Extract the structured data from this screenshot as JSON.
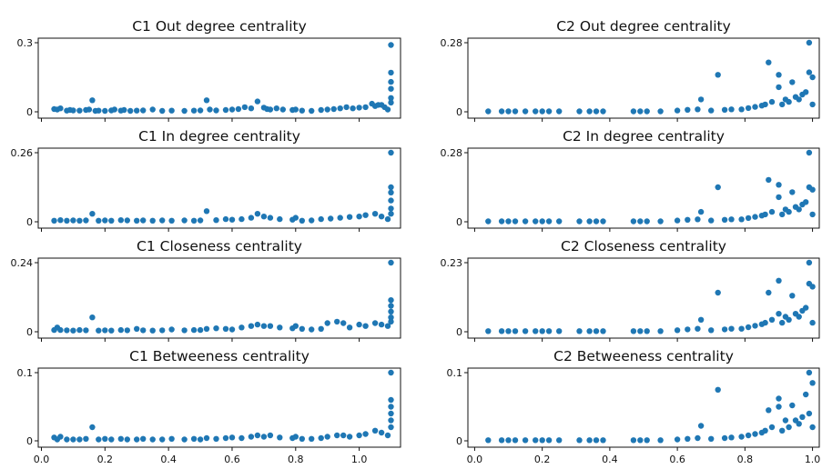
{
  "colors": {
    "marker": "#1f77b4",
    "axis": "#111111",
    "background": "#ffffff"
  },
  "chart_data": [
    {
      "type": "scatter",
      "title": "C1 Out degree centrality",
      "xlim": [
        -0.01,
        1.13
      ],
      "ylim": [
        0,
        0.3
      ],
      "xticks": [
        0.0,
        0.2,
        0.4,
        0.6,
        0.8,
        1.0
      ],
      "xtick_labels": [],
      "yticks": [
        0,
        0.3
      ],
      "ytick_labels": [
        "0",
        "0.3"
      ],
      "x": [
        0.04,
        0.05,
        0.06,
        0.08,
        0.09,
        0.1,
        0.12,
        0.14,
        0.15,
        0.16,
        0.17,
        0.18,
        0.2,
        0.22,
        0.23,
        0.25,
        0.26,
        0.28,
        0.3,
        0.32,
        0.35,
        0.38,
        0.41,
        0.45,
        0.48,
        0.5,
        0.52,
        0.53,
        0.55,
        0.58,
        0.6,
        0.62,
        0.64,
        0.66,
        0.68,
        0.7,
        0.71,
        0.72,
        0.74,
        0.76,
        0.79,
        0.8,
        0.82,
        0.85,
        0.88,
        0.9,
        0.92,
        0.94,
        0.96,
        0.98,
        1.0,
        1.02,
        1.04,
        1.05,
        1.06,
        1.07,
        1.08,
        1.09,
        1.1,
        1.1,
        1.1,
        1.1,
        1.1,
        1.1
      ],
      "y": [
        0.012,
        0.01,
        0.015,
        0.005,
        0.008,
        0.006,
        0.005,
        0.008,
        0.01,
        0.05,
        0.004,
        0.005,
        0.004,
        0.006,
        0.01,
        0.005,
        0.008,
        0.004,
        0.005,
        0.006,
        0.01,
        0.004,
        0.005,
        0.004,
        0.005,
        0.006,
        0.05,
        0.01,
        0.006,
        0.008,
        0.01,
        0.012,
        0.02,
        0.015,
        0.045,
        0.018,
        0.012,
        0.01,
        0.015,
        0.01,
        0.008,
        0.01,
        0.005,
        0.004,
        0.008,
        0.01,
        0.012,
        0.015,
        0.02,
        0.015,
        0.018,
        0.02,
        0.035,
        0.025,
        0.03,
        0.03,
        0.02,
        0.01,
        0.06,
        0.1,
        0.13,
        0.17,
        0.29,
        0.04
      ]
    },
    {
      "type": "scatter",
      "title": "C2 Out degree centrality",
      "xlim": [
        -0.02,
        1.02
      ],
      "ylim": [
        0,
        0.28
      ],
      "xticks": [
        0.0,
        0.2,
        0.4,
        0.6,
        0.8,
        1.0
      ],
      "xtick_labels": [],
      "yticks": [
        0,
        0.28
      ],
      "ytick_labels": [
        "0",
        "0.28"
      ],
      "x": [
        0.04,
        0.08,
        0.1,
        0.12,
        0.15,
        0.18,
        0.2,
        0.22,
        0.25,
        0.31,
        0.34,
        0.36,
        0.38,
        0.47,
        0.49,
        0.51,
        0.55,
        0.6,
        0.63,
        0.66,
        0.67,
        0.7,
        0.72,
        0.74,
        0.76,
        0.79,
        0.81,
        0.83,
        0.85,
        0.86,
        0.87,
        0.88,
        0.9,
        0.9,
        0.91,
        0.92,
        0.93,
        0.94,
        0.95,
        0.96,
        0.97,
        0.98,
        0.99,
        0.99,
        1.0,
        1.0
      ],
      "y": [
        0.002,
        0.002,
        0.002,
        0.002,
        0.002,
        0.002,
        0.002,
        0.002,
        0.002,
        0.002,
        0.002,
        0.002,
        0.002,
        0.002,
        0.002,
        0.002,
        0.002,
        0.005,
        0.008,
        0.01,
        0.05,
        0.005,
        0.15,
        0.008,
        0.01,
        0.01,
        0.015,
        0.02,
        0.025,
        0.03,
        0.2,
        0.04,
        0.15,
        0.1,
        0.03,
        0.05,
        0.04,
        0.12,
        0.06,
        0.05,
        0.07,
        0.08,
        0.28,
        0.16,
        0.14,
        0.03
      ]
    },
    {
      "type": "scatter",
      "title": "C1 In degree centrality",
      "xlim": [
        -0.01,
        1.13
      ],
      "ylim": [
        0,
        0.26
      ],
      "xticks": [
        0.0,
        0.2,
        0.4,
        0.6,
        0.8,
        1.0
      ],
      "xtick_labels": [],
      "yticks": [
        0,
        0.26
      ],
      "ytick_labels": [
        "0",
        "0.26"
      ],
      "x": [
        0.04,
        0.06,
        0.08,
        0.1,
        0.12,
        0.14,
        0.16,
        0.18,
        0.2,
        0.22,
        0.25,
        0.27,
        0.3,
        0.32,
        0.35,
        0.38,
        0.41,
        0.45,
        0.48,
        0.5,
        0.52,
        0.55,
        0.58,
        0.6,
        0.63,
        0.66,
        0.68,
        0.7,
        0.72,
        0.75,
        0.79,
        0.8,
        0.82,
        0.85,
        0.88,
        0.91,
        0.94,
        0.97,
        1.0,
        1.02,
        1.05,
        1.07,
        1.09,
        1.1,
        1.1,
        1.1,
        1.1,
        1.1,
        1.1
      ],
      "y": [
        0.004,
        0.006,
        0.004,
        0.005,
        0.004,
        0.005,
        0.03,
        0.004,
        0.005,
        0.004,
        0.006,
        0.005,
        0.004,
        0.005,
        0.004,
        0.005,
        0.004,
        0.005,
        0.004,
        0.005,
        0.04,
        0.006,
        0.01,
        0.008,
        0.01,
        0.015,
        0.03,
        0.02,
        0.015,
        0.01,
        0.008,
        0.015,
        0.004,
        0.005,
        0.01,
        0.012,
        0.015,
        0.018,
        0.02,
        0.025,
        0.03,
        0.02,
        0.01,
        0.05,
        0.08,
        0.11,
        0.13,
        0.26,
        0.03
      ]
    },
    {
      "type": "scatter",
      "title": "C2 In degree centrality",
      "xlim": [
        -0.02,
        1.02
      ],
      "ylim": [
        0,
        0.28
      ],
      "xticks": [
        0.0,
        0.2,
        0.4,
        0.6,
        0.8,
        1.0
      ],
      "xtick_labels": [],
      "yticks": [
        0,
        0.28
      ],
      "ytick_labels": [
        "0",
        "0.28"
      ],
      "x": [
        0.04,
        0.08,
        0.1,
        0.12,
        0.15,
        0.18,
        0.2,
        0.22,
        0.25,
        0.31,
        0.34,
        0.36,
        0.38,
        0.47,
        0.49,
        0.51,
        0.55,
        0.6,
        0.63,
        0.66,
        0.67,
        0.7,
        0.72,
        0.74,
        0.76,
        0.79,
        0.81,
        0.83,
        0.85,
        0.86,
        0.87,
        0.88,
        0.9,
        0.9,
        0.91,
        0.92,
        0.93,
        0.94,
        0.95,
        0.96,
        0.97,
        0.98,
        0.99,
        0.99,
        1.0,
        1.0
      ],
      "y": [
        0.002,
        0.002,
        0.002,
        0.002,
        0.002,
        0.002,
        0.002,
        0.002,
        0.002,
        0.002,
        0.002,
        0.002,
        0.002,
        0.002,
        0.002,
        0.002,
        0.002,
        0.005,
        0.008,
        0.01,
        0.04,
        0.005,
        0.14,
        0.008,
        0.01,
        0.01,
        0.015,
        0.02,
        0.025,
        0.03,
        0.17,
        0.04,
        0.15,
        0.1,
        0.03,
        0.05,
        0.04,
        0.12,
        0.06,
        0.05,
        0.07,
        0.08,
        0.28,
        0.14,
        0.13,
        0.03
      ]
    },
    {
      "type": "scatter",
      "title": "C1 Closeness centrality",
      "xlim": [
        -0.01,
        1.13
      ],
      "ylim": [
        0,
        0.24
      ],
      "xticks": [
        0.0,
        0.2,
        0.4,
        0.6,
        0.8,
        1.0
      ],
      "xtick_labels": [],
      "yticks": [
        0,
        0.24
      ],
      "ytick_labels": [
        "0",
        "0.24"
      ],
      "x": [
        0.04,
        0.05,
        0.06,
        0.08,
        0.1,
        0.12,
        0.14,
        0.16,
        0.18,
        0.2,
        0.22,
        0.25,
        0.27,
        0.3,
        0.32,
        0.35,
        0.38,
        0.41,
        0.45,
        0.48,
        0.5,
        0.52,
        0.55,
        0.58,
        0.6,
        0.63,
        0.66,
        0.68,
        0.7,
        0.72,
        0.75,
        0.79,
        0.8,
        0.82,
        0.85,
        0.88,
        0.9,
        0.93,
        0.95,
        0.97,
        1.0,
        1.02,
        1.05,
        1.07,
        1.09,
        1.1,
        1.1,
        1.1,
        1.1,
        1.1,
        1.1
      ],
      "y": [
        0.006,
        0.015,
        0.006,
        0.005,
        0.004,
        0.006,
        0.005,
        0.05,
        0.004,
        0.005,
        0.004,
        0.006,
        0.005,
        0.01,
        0.005,
        0.004,
        0.005,
        0.008,
        0.005,
        0.006,
        0.006,
        0.01,
        0.012,
        0.01,
        0.008,
        0.015,
        0.02,
        0.025,
        0.02,
        0.02,
        0.015,
        0.012,
        0.02,
        0.01,
        0.008,
        0.01,
        0.03,
        0.035,
        0.03,
        0.015,
        0.025,
        0.02,
        0.03,
        0.025,
        0.02,
        0.05,
        0.07,
        0.09,
        0.11,
        0.24,
        0.035
      ]
    },
    {
      "type": "scatter",
      "title": "C2 Closeness centrality",
      "xlim": [
        -0.02,
        1.02
      ],
      "ylim": [
        0,
        0.23
      ],
      "xticks": [
        0.0,
        0.2,
        0.4,
        0.6,
        0.8,
        1.0
      ],
      "xtick_labels": [],
      "yticks": [
        0,
        0.23
      ],
      "ytick_labels": [
        "0",
        "0.23"
      ],
      "x": [
        0.04,
        0.08,
        0.1,
        0.12,
        0.15,
        0.18,
        0.2,
        0.22,
        0.25,
        0.31,
        0.34,
        0.36,
        0.38,
        0.47,
        0.49,
        0.51,
        0.55,
        0.6,
        0.63,
        0.66,
        0.67,
        0.7,
        0.72,
        0.74,
        0.76,
        0.79,
        0.81,
        0.83,
        0.85,
        0.86,
        0.87,
        0.88,
        0.9,
        0.9,
        0.91,
        0.92,
        0.93,
        0.94,
        0.95,
        0.96,
        0.97,
        0.98,
        0.99,
        0.99,
        1.0,
        1.0
      ],
      "y": [
        0.002,
        0.002,
        0.002,
        0.002,
        0.002,
        0.002,
        0.002,
        0.002,
        0.002,
        0.002,
        0.002,
        0.002,
        0.002,
        0.002,
        0.002,
        0.002,
        0.002,
        0.005,
        0.008,
        0.01,
        0.04,
        0.005,
        0.13,
        0.008,
        0.01,
        0.01,
        0.015,
        0.02,
        0.025,
        0.03,
        0.13,
        0.04,
        0.17,
        0.06,
        0.03,
        0.05,
        0.04,
        0.12,
        0.06,
        0.05,
        0.07,
        0.08,
        0.23,
        0.16,
        0.15,
        0.03
      ]
    },
    {
      "type": "scatter",
      "title": "C1 Betweeness centrality",
      "xlim": [
        -0.01,
        1.13
      ],
      "ylim": [
        0,
        0.1
      ],
      "xticks": [
        0.0,
        0.2,
        0.4,
        0.6,
        0.8,
        1.0
      ],
      "xtick_labels": [
        "0.0",
        "0.2",
        "0.4",
        "0.6",
        "0.8",
        "1.0"
      ],
      "yticks": [
        0,
        0.1
      ],
      "ytick_labels": [
        "0",
        "0.1"
      ],
      "x": [
        0.04,
        0.05,
        0.06,
        0.08,
        0.1,
        0.12,
        0.14,
        0.16,
        0.18,
        0.2,
        0.22,
        0.25,
        0.27,
        0.3,
        0.32,
        0.35,
        0.38,
        0.41,
        0.45,
        0.48,
        0.5,
        0.52,
        0.55,
        0.58,
        0.6,
        0.63,
        0.66,
        0.68,
        0.7,
        0.72,
        0.75,
        0.79,
        0.8,
        0.82,
        0.85,
        0.88,
        0.9,
        0.93,
        0.95,
        0.97,
        1.0,
        1.02,
        1.05,
        1.07,
        1.09,
        1.1,
        1.1,
        1.1,
        1.1,
        1.1,
        1.1
      ],
      "y": [
        0.005,
        0.002,
        0.006,
        0.002,
        0.002,
        0.002,
        0.003,
        0.02,
        0.002,
        0.003,
        0.002,
        0.003,
        0.002,
        0.002,
        0.003,
        0.002,
        0.002,
        0.003,
        0.002,
        0.003,
        0.002,
        0.004,
        0.003,
        0.004,
        0.005,
        0.004,
        0.006,
        0.008,
        0.006,
        0.008,
        0.005,
        0.004,
        0.006,
        0.003,
        0.003,
        0.004,
        0.006,
        0.008,
        0.008,
        0.006,
        0.008,
        0.01,
        0.015,
        0.012,
        0.008,
        0.03,
        0.04,
        0.05,
        0.06,
        0.1,
        0.02
      ]
    },
    {
      "type": "scatter",
      "title": "C2 Betweeness centrality",
      "xlim": [
        -0.02,
        1.02
      ],
      "ylim": [
        0,
        0.1
      ],
      "xticks": [
        0.0,
        0.2,
        0.4,
        0.6,
        0.8,
        1.0
      ],
      "xtick_labels": [
        "0.0",
        "0.2",
        "0.4",
        "0.6",
        "0.8",
        "1.0"
      ],
      "yticks": [
        0,
        0.1
      ],
      "ytick_labels": [
        "0",
        "0.1"
      ],
      "x": [
        0.04,
        0.08,
        0.1,
        0.12,
        0.15,
        0.18,
        0.2,
        0.22,
        0.25,
        0.31,
        0.34,
        0.36,
        0.38,
        0.47,
        0.49,
        0.51,
        0.55,
        0.6,
        0.63,
        0.66,
        0.67,
        0.7,
        0.72,
        0.74,
        0.76,
        0.79,
        0.81,
        0.83,
        0.85,
        0.86,
        0.87,
        0.88,
        0.9,
        0.9,
        0.91,
        0.92,
        0.93,
        0.94,
        0.95,
        0.96,
        0.97,
        0.98,
        0.99,
        0.99,
        1.0,
        1.0
      ],
      "y": [
        0.001,
        0.001,
        0.001,
        0.001,
        0.001,
        0.001,
        0.001,
        0.001,
        0.001,
        0.001,
        0.001,
        0.001,
        0.001,
        0.001,
        0.001,
        0.001,
        0.001,
        0.002,
        0.003,
        0.004,
        0.022,
        0.003,
        0.075,
        0.004,
        0.005,
        0.006,
        0.008,
        0.01,
        0.012,
        0.015,
        0.045,
        0.02,
        0.062,
        0.05,
        0.015,
        0.03,
        0.02,
        0.052,
        0.03,
        0.025,
        0.035,
        0.068,
        0.1,
        0.04,
        0.085,
        0.02
      ]
    }
  ]
}
